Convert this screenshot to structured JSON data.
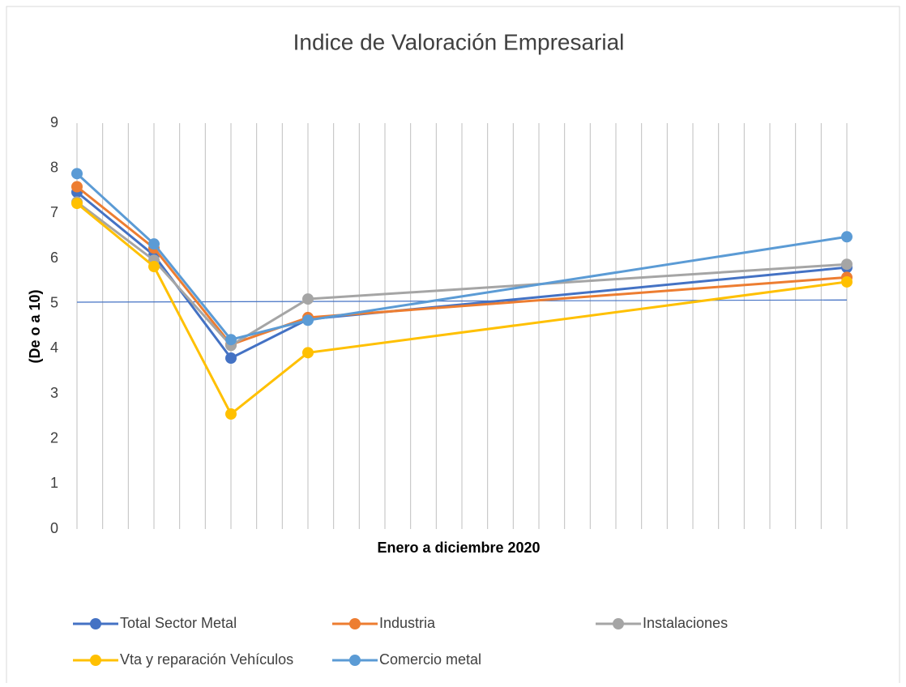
{
  "chart_data": {
    "type": "line",
    "title": "Indice de Valoración Empresarial",
    "ylabel": "(De o a 10)",
    "xlabel": "Enero a diciembre 2020",
    "x": [
      0,
      3,
      6,
      9,
      30
    ],
    "xlim": [
      0,
      30
    ],
    "ylim": [
      0,
      9
    ],
    "yticks": [
      0,
      1,
      2,
      3,
      4,
      5,
      6,
      7,
      8,
      9
    ],
    "grid": true,
    "legend": "bottom",
    "reference_line": {
      "color": "#4472c4",
      "values": [
        5.03,
        5.08
      ]
    },
    "series": [
      {
        "name": "Total Sector Metal",
        "color": "#4472c4",
        "values": [
          7.47,
          6.07,
          3.79,
          4.65,
          5.8
        ]
      },
      {
        "name": "Industria",
        "color": "#ed7d31",
        "values": [
          7.59,
          6.23,
          4.09,
          4.69,
          5.58
        ]
      },
      {
        "name": "Instalaciones",
        "color": "#a5a5a5",
        "values": [
          7.25,
          5.96,
          4.07,
          5.1,
          5.87
        ]
      },
      {
        "name": "Vta y reparación Vehículos",
        "color": "#ffc000",
        "values": [
          7.22,
          5.82,
          2.55,
          3.91,
          5.48
        ]
      },
      {
        "name": "Comercio metal",
        "color": "#5b9bd5",
        "values": [
          7.88,
          6.32,
          4.2,
          4.63,
          6.48
        ]
      }
    ]
  }
}
